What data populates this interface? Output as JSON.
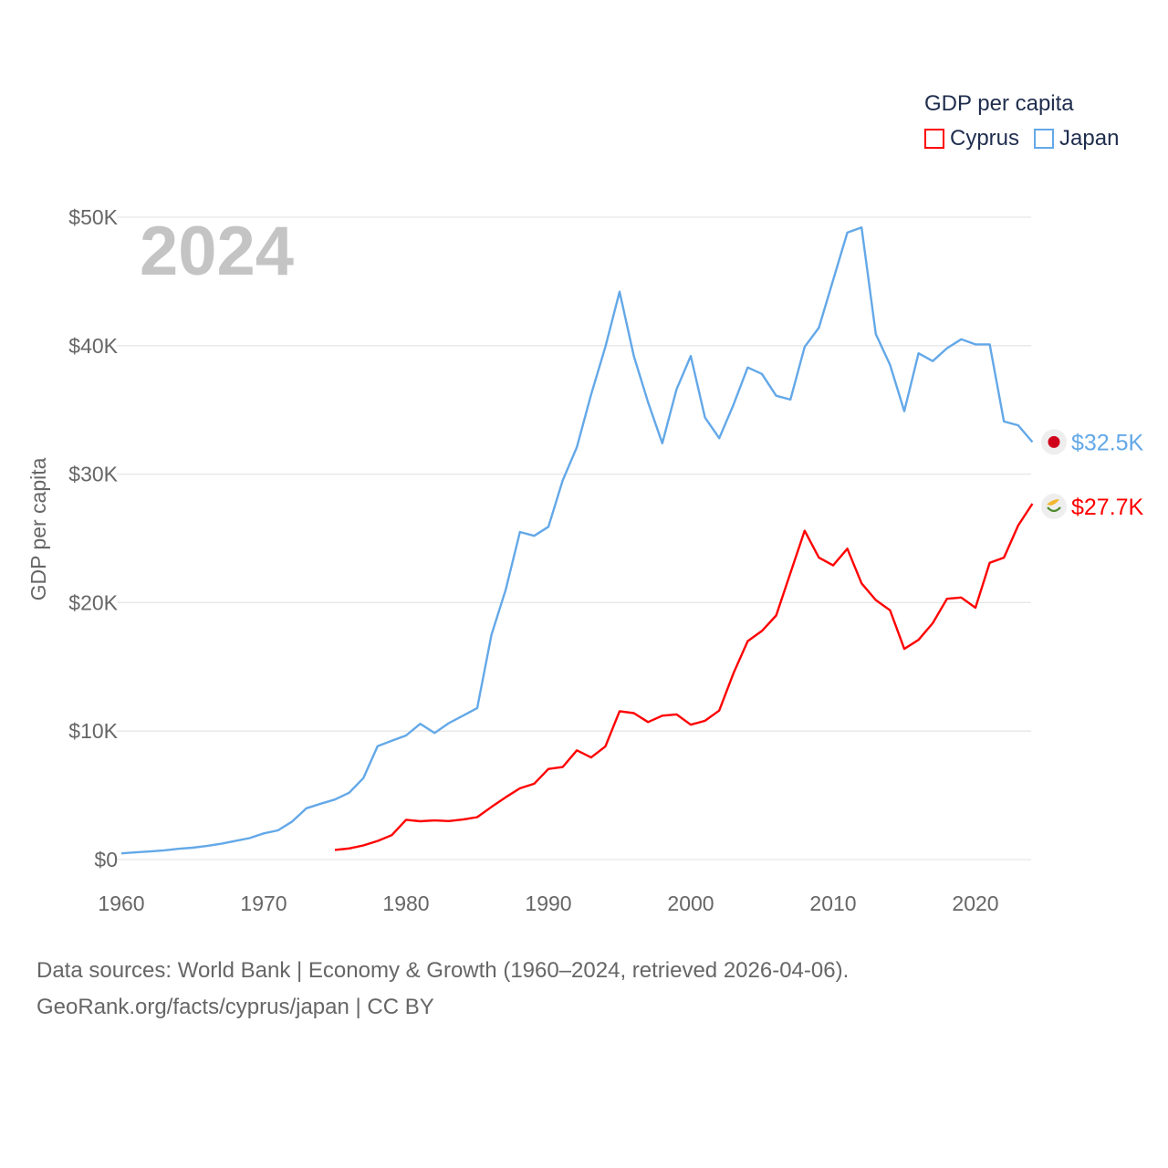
{
  "chart_data": {
    "type": "line",
    "title": "",
    "watermark_year": "2024",
    "xlabel": "",
    "ylabel": "GDP per capita",
    "xlim": [
      1960,
      2024
    ],
    "ylim": [
      0,
      50
    ],
    "grid": true,
    "x_ticks": [
      1960,
      1970,
      1980,
      1990,
      2000,
      2010,
      2020
    ],
    "x_tick_labels": [
      "1960",
      "1970",
      "1980",
      "1990",
      "2000",
      "2010",
      "2020"
    ],
    "y_ticks": [
      0,
      10,
      20,
      30,
      40,
      50
    ],
    "y_tick_labels": [
      "$0",
      "$10K",
      "$20K",
      "$30K",
      "$40K",
      "$50K"
    ],
    "legend": {
      "title": "GDP per capita",
      "placement": "top-right"
    },
    "series": [
      {
        "name": "Cyprus",
        "color": "#ff0000",
        "end_label": "$27.7K",
        "flag_icon": "cyprus-flag",
        "start_year": 1975,
        "values": [
          0.75,
          0.87,
          1.1,
          1.45,
          1.9,
          3.1,
          2.98,
          3.05,
          3.0,
          3.12,
          3.3,
          4.1,
          4.85,
          5.55,
          5.9,
          7.05,
          7.2,
          8.5,
          7.95,
          8.8,
          11.55,
          11.4,
          10.7,
          11.2,
          11.3,
          10.5,
          10.8,
          11.6,
          14.5,
          17.0,
          17.8,
          19.0,
          22.3,
          25.6,
          23.5,
          22.9,
          24.2,
          21.5,
          20.2,
          19.4,
          16.4,
          17.1,
          18.4,
          20.3,
          20.4,
          19.6,
          23.1,
          23.5,
          26.0,
          27.7
        ]
      },
      {
        "name": "Japan",
        "color": "#63a8e8",
        "end_label": "$32.5K",
        "flag_icon": "japan-flag",
        "start_year": 1960,
        "values": [
          0.48,
          0.56,
          0.63,
          0.72,
          0.84,
          0.92,
          1.06,
          1.23,
          1.45,
          1.67,
          2.04,
          2.27,
          2.96,
          3.99,
          4.35,
          4.67,
          5.2,
          6.34,
          8.82,
          9.25,
          9.66,
          10.57,
          9.85,
          10.62,
          11.2,
          11.8,
          17.5,
          21.0,
          25.5,
          25.2,
          25.9,
          29.5,
          32.1,
          36.2,
          39.9,
          44.2,
          39.2,
          35.6,
          32.4,
          36.6,
          39.2,
          34.4,
          32.8,
          35.4,
          38.3,
          37.8,
          36.1,
          35.8,
          39.9,
          41.4,
          45.1,
          48.8,
          49.2,
          40.9,
          38.5,
          34.9,
          39.4,
          38.8,
          39.8,
          40.5,
          40.1,
          40.1,
          34.1,
          33.8,
          32.5
        ]
      }
    ]
  },
  "footer": {
    "line1": "Data sources: World Bank | Economy & Growth (1960–2024, retrieved 2026-04-06).",
    "line2": "GeoRank.org/facts/cyprus/japan | CC BY"
  }
}
